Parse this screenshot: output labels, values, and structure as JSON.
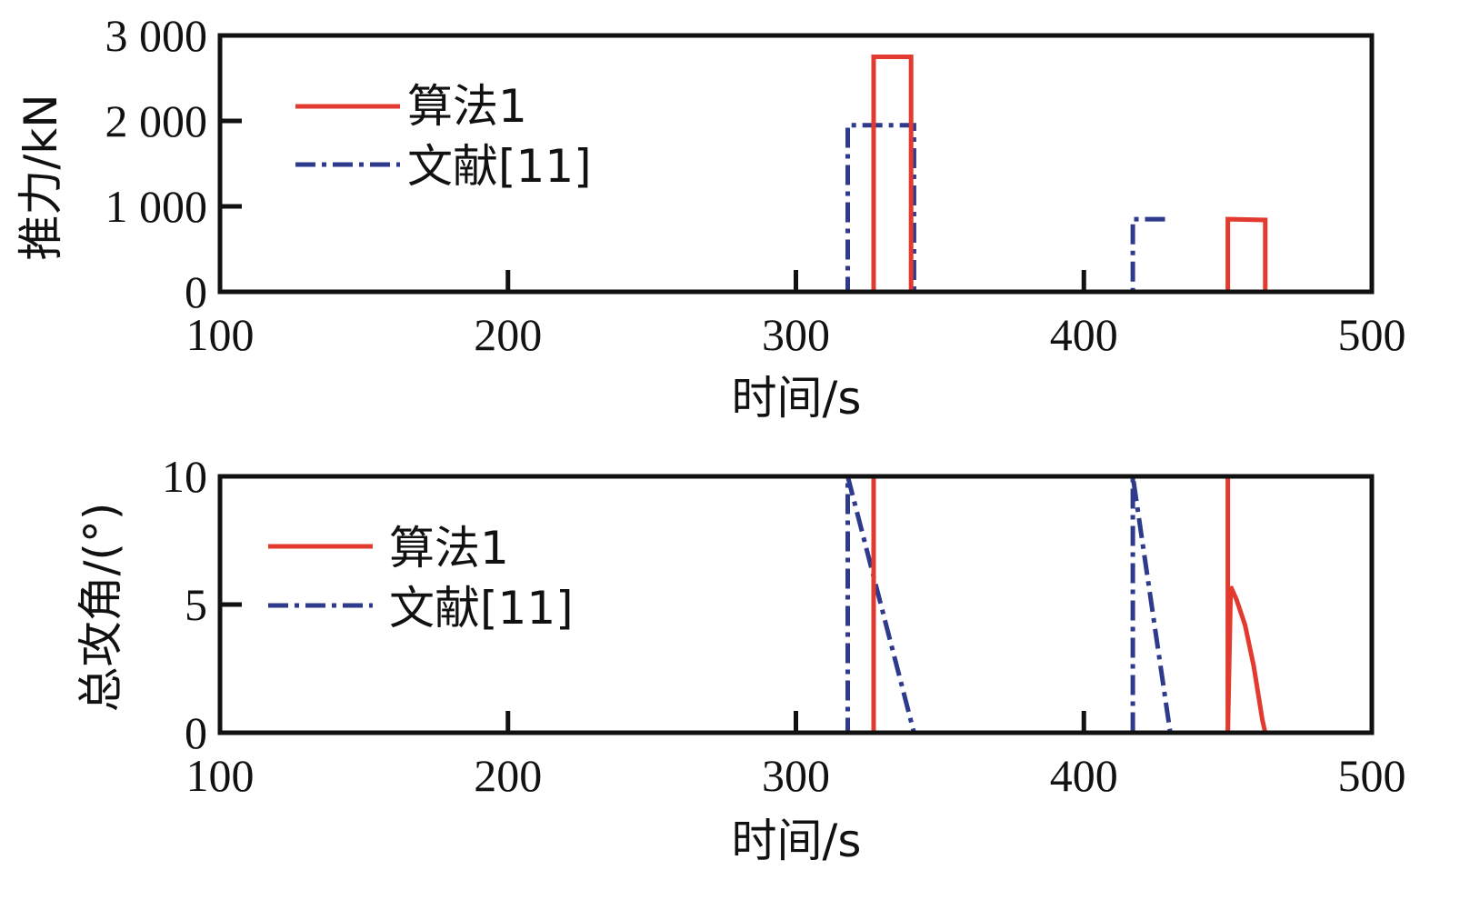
{
  "colors": {
    "algo1": "#e23a2e",
    "ref11": "#2e3a8c",
    "axis": "#111111"
  },
  "chart_data": [
    {
      "type": "line",
      "xlabel": "时间/s",
      "ylabel": "推力/kN",
      "xlim": [
        100,
        500
      ],
      "ylim": [
        0,
        3000
      ],
      "x_ticks": [
        "100",
        "200",
        "300",
        "400",
        "500"
      ],
      "y_ticks": [
        "0",
        "1 000",
        "2 000",
        "3 000"
      ],
      "legend_position": "upper-left",
      "series": [
        {
          "name": "算法1",
          "style": "solid",
          "points": [
            [
              148,
              0
            ],
            [
              327,
              0
            ],
            [
              327,
              2750
            ],
            [
              340,
              2750
            ],
            [
              340,
              0
            ],
            [
              450,
              0
            ],
            [
              450,
              850
            ],
            [
              463,
              840
            ],
            [
              463,
              0
            ]
          ]
        },
        {
          "name": "文献[11]",
          "style": "dashdot",
          "points": [
            [
              148,
              0
            ],
            [
              318,
              0
            ],
            [
              318,
              1950
            ],
            [
              341,
              1950
            ],
            [
              341,
              0
            ],
            [
              417,
              0
            ],
            [
              417,
              850
            ],
            [
              430,
              850
            ]
          ]
        }
      ]
    },
    {
      "type": "line",
      "xlabel": "时间/s",
      "ylabel": "总攻角/(°)",
      "xlim": [
        100,
        500
      ],
      "ylim": [
        0,
        10
      ],
      "x_ticks": [
        "100",
        "200",
        "300",
        "400",
        "500"
      ],
      "y_ticks": [
        "0",
        "5",
        "10"
      ],
      "legend_position": "upper-left",
      "series": [
        {
          "name": "算法1",
          "style": "solid",
          "points": [
            [
              148,
              0
            ],
            [
              327,
              0
            ],
            [
              327,
              10
            ],
            [
              450,
              10
            ],
            [
              450,
              0
            ],
            [
              451,
              5.7
            ],
            [
              453,
              5.2
            ],
            [
              456,
              4.2
            ],
            [
              459,
              2.6
            ],
            [
              462,
              0.5
            ],
            [
              463,
              0
            ]
          ]
        },
        {
          "name": "文献[11]",
          "style": "dashdot",
          "points": [
            [
              148,
              0
            ],
            [
              318,
              0
            ],
            [
              318,
              10
            ],
            [
              341,
              0
            ],
            [
              417,
              0
            ],
            [
              417,
              10
            ],
            [
              430,
              0
            ]
          ]
        }
      ]
    }
  ]
}
